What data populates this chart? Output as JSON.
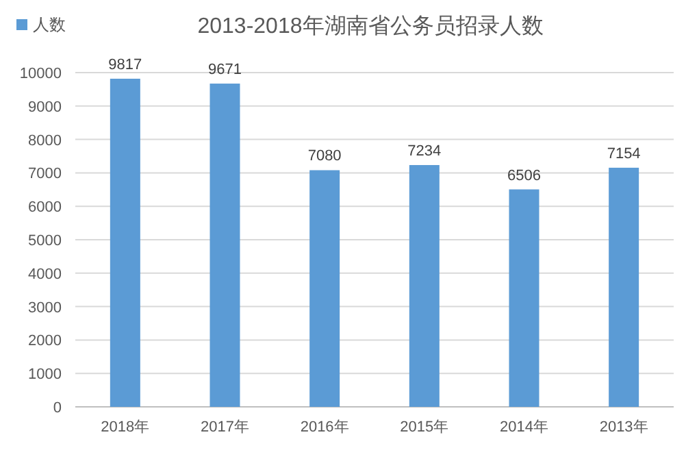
{
  "chart_data": {
    "type": "bar",
    "title": "2013-2018年湖南省公务员招录人数",
    "categories": [
      "2018年",
      "2017年",
      "2016年",
      "2015年",
      "2014年",
      "2013年"
    ],
    "series": [
      {
        "name": "人数",
        "color": "#5b9bd5",
        "values": [
          9817,
          9671,
          7080,
          7234,
          6506,
          7154
        ]
      }
    ],
    "ylim": [
      0,
      10000
    ],
    "yticks": [
      0,
      1000,
      2000,
      3000,
      4000,
      5000,
      6000,
      7000,
      8000,
      9000,
      10000
    ],
    "grid": "y",
    "legend": "top left",
    "data_labels": true
  }
}
